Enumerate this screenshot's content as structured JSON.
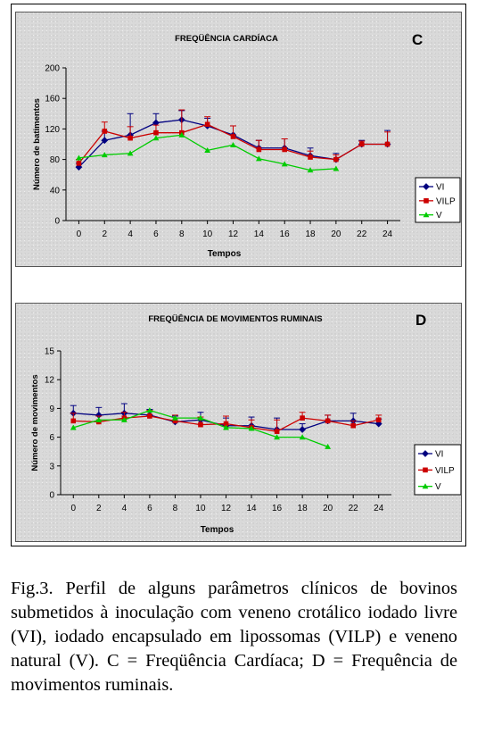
{
  "caption": "Fig.3. Perfil de alguns parâmetros clínicos de bovinos submetidos à inoculação com veneno crotálico iodado livre (VI), iodado encapsulado em lipossomas (VILP) e veneno natural (V). C = Freqüência Cardíaca; D = Frequência de movimentos ruminais.",
  "colors": {
    "VI": "#000080",
    "VILP": "#cc0000",
    "V": "#00cc00"
  },
  "chart_data": [
    {
      "type": "line",
      "panel_letter": "C",
      "title": "FREQÜÊNCIA CARDÍACA",
      "xlabel": "Tempos",
      "ylabel": "Número de batimentos",
      "x": [
        0,
        2,
        4,
        6,
        8,
        10,
        12,
        14,
        16,
        18,
        20,
        22,
        24
      ],
      "ylim": [
        0,
        200
      ],
      "yticks": [
        0,
        40,
        80,
        120,
        160,
        200
      ],
      "legend_position": "right",
      "grid": false,
      "series": [
        {
          "name": "VI",
          "marker": "diamond",
          "values": [
            70,
            105,
            112,
            128,
            132,
            124,
            112,
            95,
            95,
            85,
            80,
            100,
            100
          ],
          "errors": [
            5,
            12,
            28,
            12,
            12,
            10,
            12,
            10,
            12,
            10,
            8,
            5,
            18
          ]
        },
        {
          "name": "VILP",
          "marker": "square",
          "values": [
            75,
            117,
            108,
            115,
            115,
            126,
            110,
            93,
            93,
            83,
            80,
            100,
            100
          ],
          "errors": [
            5,
            12,
            15,
            10,
            30,
            10,
            14,
            12,
            14,
            8,
            6,
            4,
            16
          ]
        },
        {
          "name": "V",
          "marker": "triangle",
          "values": [
            82,
            86,
            88,
            108,
            112,
            92,
            99,
            81,
            74,
            66,
            68,
            null,
            null
          ],
          "errors": [
            0,
            0,
            0,
            0,
            0,
            0,
            0,
            0,
            0,
            0,
            0,
            0,
            0
          ]
        }
      ]
    },
    {
      "type": "line",
      "panel_letter": "D",
      "title": "FREQÜÊNCIA DE MOVIMENTOS RUMINAIS",
      "xlabel": "Tempos",
      "ylabel": "Número de movimentos",
      "x": [
        0,
        2,
        4,
        6,
        8,
        10,
        12,
        14,
        16,
        18,
        20,
        22,
        24
      ],
      "ylim": [
        0,
        15
      ],
      "yticks": [
        0,
        3,
        6,
        9,
        12,
        15
      ],
      "legend_position": "right",
      "grid": false,
      "series": [
        {
          "name": "VI",
          "marker": "diamond",
          "values": [
            8.5,
            8.3,
            8.5,
            8.3,
            7.6,
            7.8,
            7.2,
            7.2,
            6.8,
            6.8,
            7.7,
            7.7,
            7.4
          ],
          "errors": [
            0.8,
            0.8,
            1.0,
            0.6,
            0.6,
            0.8,
            0.8,
            0.9,
            1.2,
            0.6,
            0.6,
            0.8,
            0.5
          ]
        },
        {
          "name": "VILP",
          "marker": "square",
          "values": [
            7.7,
            7.6,
            8.0,
            8.2,
            7.7,
            7.3,
            7.4,
            7.0,
            6.6,
            8.0,
            7.7,
            7.2,
            7.8
          ],
          "errors": [
            0.8,
            0.6,
            0.6,
            0.6,
            0.6,
            0.8,
            0.8,
            0.8,
            1.2,
            0.6,
            0.6,
            0.5,
            0.5
          ]
        },
        {
          "name": "V",
          "marker": "triangle",
          "values": [
            7.0,
            7.8,
            7.8,
            8.8,
            8.0,
            8.0,
            7.0,
            6.9,
            6.0,
            6.0,
            5.0,
            null,
            null
          ],
          "errors": [
            0,
            0,
            0,
            0,
            0,
            0,
            0,
            0,
            0,
            0,
            0,
            0,
            0
          ]
        }
      ]
    }
  ]
}
